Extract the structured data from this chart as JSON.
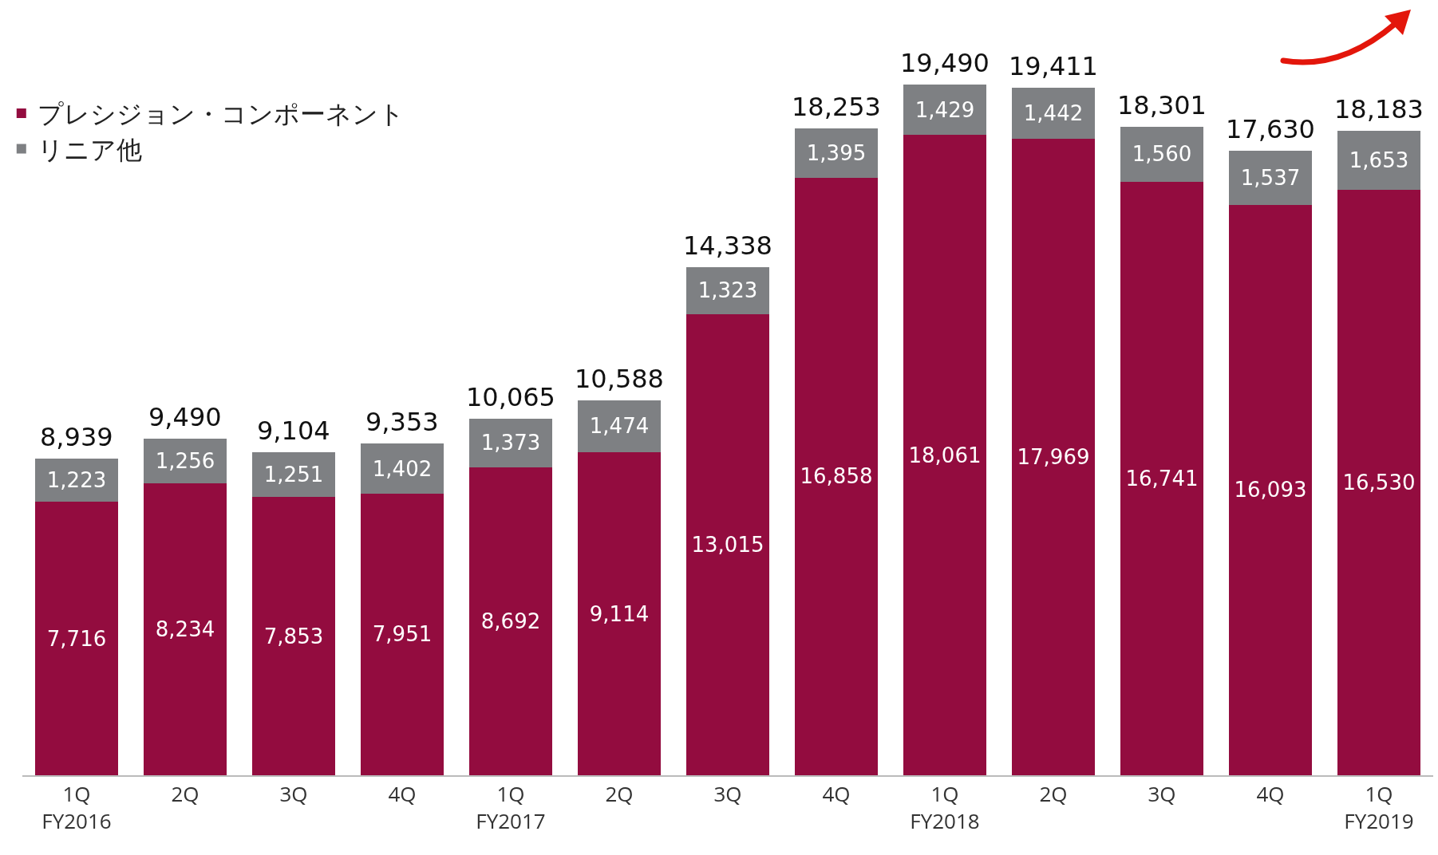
{
  "chart_data": {
    "type": "bar",
    "stacked": true,
    "legend": "top left",
    "categories": [
      "1Q\nFY2016",
      "2Q",
      "3Q",
      "4Q",
      "1Q\nFY2017",
      "2Q",
      "3Q",
      "4Q",
      "1Q\nFY2018",
      "2Q",
      "3Q",
      "4Q",
      "1Q\nFY2019"
    ],
    "series": [
      {
        "name": "プレシジョン・コンポーネント",
        "color": "#930c3f",
        "values": [
          7716,
          8234,
          7853,
          7951,
          8692,
          9114,
          13015,
          16858,
          18061,
          17969,
          16741,
          16093,
          16530
        ],
        "value_labels": [
          "7,716",
          "8,234",
          "7,853",
          "7,951",
          "8,692",
          "9,114",
          "13,015",
          "16,858",
          "18,061",
          "17,969",
          "16,741",
          "16,093",
          "16,530"
        ]
      },
      {
        "name": "リニア他",
        "color": "#7e8083",
        "values": [
          1223,
          1256,
          1251,
          1402,
          1373,
          1474,
          1323,
          1395,
          1429,
          1442,
          1560,
          1537,
          1653
        ],
        "value_labels": [
          "1,223",
          "1,256",
          "1,251",
          "1,402",
          "1,373",
          "1,474",
          "1,323",
          "1,395",
          "1,429",
          "1,442",
          "1,560",
          "1,537",
          "1,653"
        ]
      }
    ],
    "totals": [
      "8,939",
      "9,490",
      "9,104",
      "9,353",
      "10,065",
      "10,588",
      "14,338",
      "18,253",
      "19,490",
      "19,411",
      "18,301",
      "17,630",
      "18,183"
    ]
  }
}
